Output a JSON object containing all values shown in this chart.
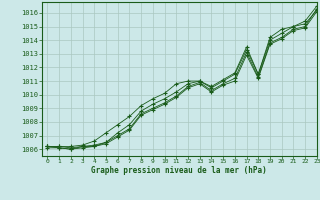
{
  "title": "Graphe pression niveau de la mer (hPa)",
  "bg_color": "#cce8e8",
  "grid_color": "#aac8c0",
  "line_color": "#1a5c1a",
  "marker_color": "#1a5c1a",
  "xlim": [
    -0.5,
    23
  ],
  "ylim": [
    1005.5,
    1016.8
  ],
  "xticks": [
    0,
    1,
    2,
    3,
    4,
    5,
    6,
    7,
    8,
    9,
    10,
    11,
    12,
    13,
    14,
    15,
    16,
    17,
    18,
    19,
    20,
    21,
    22,
    23
  ],
  "yticks": [
    1006,
    1007,
    1008,
    1009,
    1010,
    1011,
    1012,
    1013,
    1014,
    1015,
    1016
  ],
  "series": [
    [
      1006.2,
      1006.2,
      1006.1,
      1006.2,
      1006.3,
      1006.5,
      1007.2,
      1007.8,
      1008.8,
      1009.3,
      1009.7,
      1010.2,
      1010.8,
      1011.0,
      1010.5,
      1011.0,
      1011.5,
      1013.3,
      1011.5,
      1014.0,
      1014.5,
      1015.0,
      1015.2,
      1016.2
    ],
    [
      1006.2,
      1006.1,
      1006.0,
      1006.2,
      1006.2,
      1006.5,
      1007.0,
      1007.5,
      1008.6,
      1009.0,
      1009.4,
      1009.9,
      1010.6,
      1010.9,
      1010.3,
      1010.8,
      1011.2,
      1013.1,
      1011.3,
      1013.8,
      1014.2,
      1014.8,
      1015.0,
      1016.3
    ],
    [
      1006.1,
      1006.1,
      1006.0,
      1006.1,
      1006.2,
      1006.4,
      1006.9,
      1007.4,
      1008.5,
      1008.9,
      1009.3,
      1009.8,
      1010.5,
      1010.8,
      1010.2,
      1010.7,
      1011.0,
      1012.9,
      1011.2,
      1013.7,
      1014.1,
      1014.7,
      1014.9,
      1016.1
    ],
    [
      1006.2,
      1006.2,
      1006.2,
      1006.3,
      1006.6,
      1007.2,
      1007.8,
      1008.4,
      1009.2,
      1009.7,
      1010.1,
      1010.8,
      1011.0,
      1011.0,
      1010.6,
      1011.1,
      1011.6,
      1013.5,
      1011.5,
      1014.2,
      1014.8,
      1015.0,
      1015.4,
      1016.5
    ]
  ]
}
